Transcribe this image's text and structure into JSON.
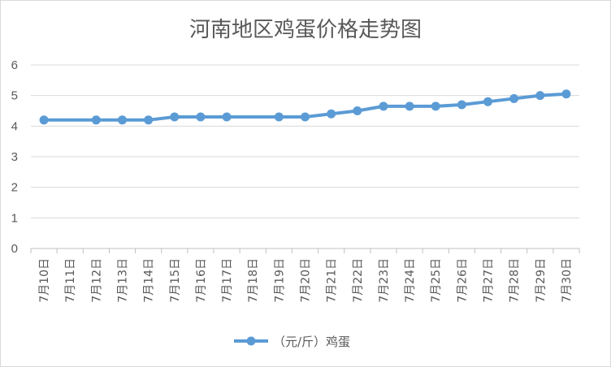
{
  "chart_data": {
    "type": "line",
    "title": "河南地区鸡蛋价格走势图",
    "categories": [
      "7月10日",
      "7月11日",
      "7月12日",
      "7月13日",
      "7月14日",
      "7月15日",
      "7月16日",
      "7月17日",
      "7月18日",
      "7月19日",
      "7月20日",
      "7月21日",
      "7月22日",
      "7月23日",
      "7月24日",
      "7月25日",
      "7月26日",
      "7月27日",
      "7月28日",
      "7月29日",
      "7月30日"
    ],
    "series": [
      {
        "name": "（元/斤）鸡蛋",
        "values": [
          4.2,
          null,
          4.2,
          4.2,
          4.2,
          4.3,
          4.3,
          4.3,
          null,
          4.3,
          4.3,
          4.4,
          4.5,
          4.65,
          4.65,
          4.65,
          4.7,
          4.8,
          4.9,
          5.0,
          5.05
        ],
        "color": "#5b9bd5"
      }
    ],
    "yticks": [
      "0",
      "1",
      "2",
      "3",
      "4",
      "5",
      "6"
    ],
    "ylim": [
      0,
      6
    ],
    "xlabel": "",
    "ylabel": "",
    "grid": true,
    "legend": "bottom"
  }
}
